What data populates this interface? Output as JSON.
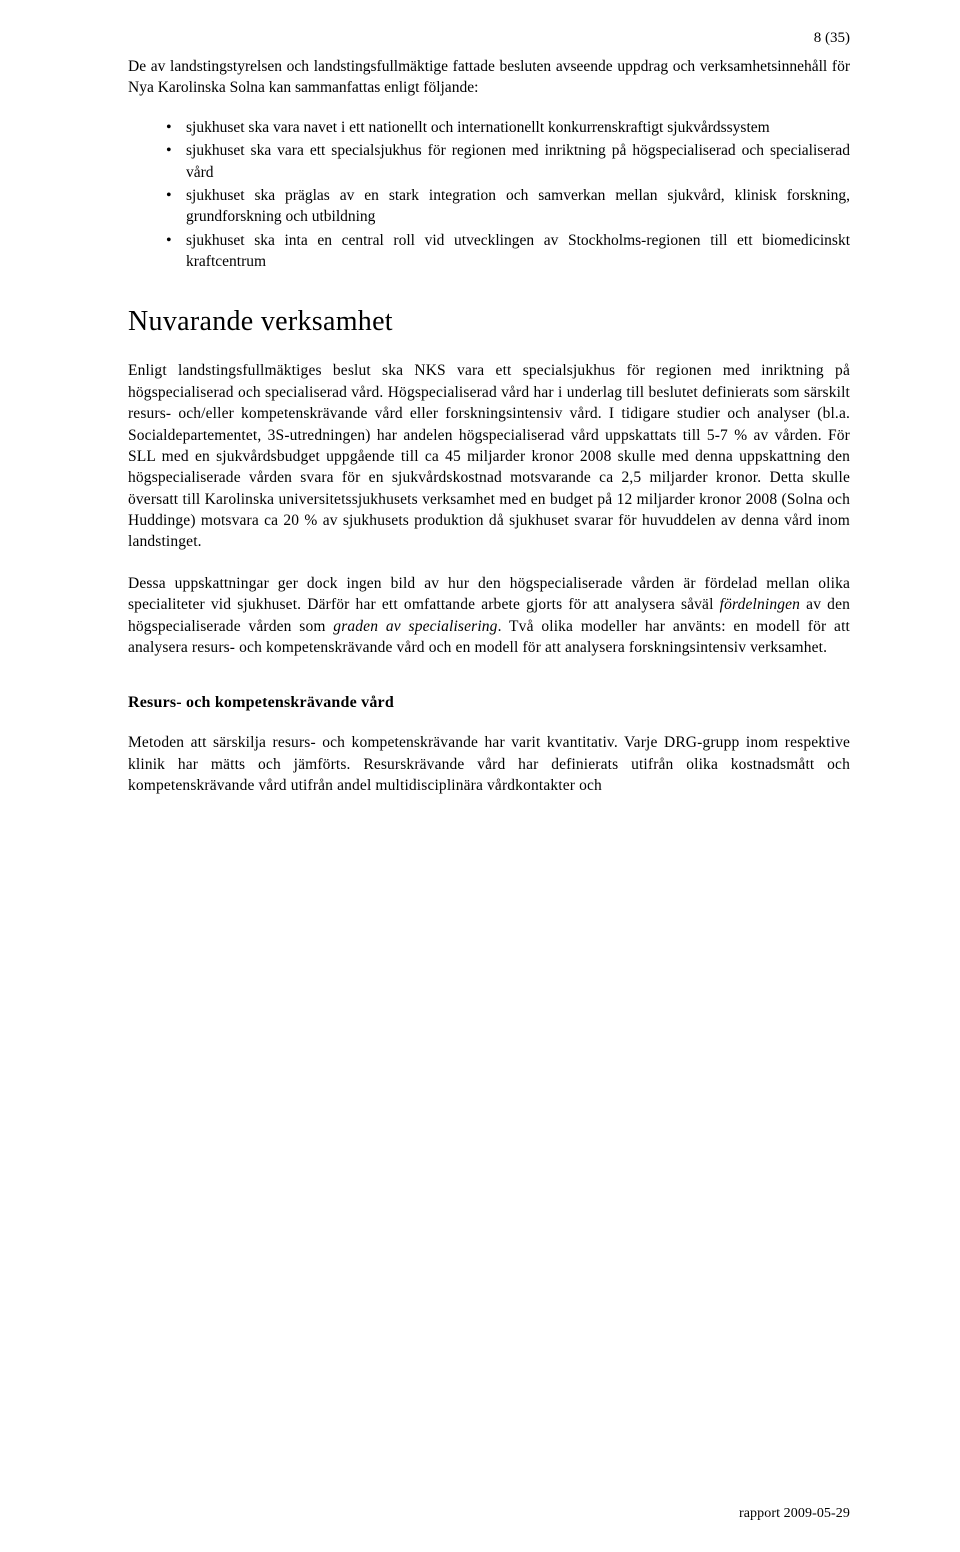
{
  "page_number": "8 (35)",
  "intro": "De av landstingstyrelsen och landstingsfullmäktige fattade besluten avseende uppdrag och verksamhetsinnehåll för Nya Karolinska Solna kan sammanfattas enligt följande:",
  "bullets": [
    "sjukhuset ska vara navet i ett nationellt och internationellt konkurrenskraftigt sjukvårdssystem",
    "sjukhuset ska vara ett specialsjukhus för regionen med inriktning på högspecialiserad och specialiserad vård",
    "sjukhuset ska präglas av en stark integration och samverkan mellan sjukvård, klinisk forskning, grundforskning och utbildning",
    "sjukhuset ska inta en central roll vid utvecklingen av Stockholms-regionen till ett biomedicinskt kraftcentrum"
  ],
  "section_title": "Nuvarande verksamhet",
  "para1": "Enligt landstingsfullmäktiges beslut ska NKS vara ett specialsjukhus för regionen med inriktning på högspecialiserad och specialiserad vård. Högspecialiserad vård har i underlag till beslutet definierats som särskilt resurs- och/eller kompetenskrävande vård eller forskningsintensiv vård. I tidigare studier och analyser (bl.a. Socialdepartementet, 3S-utredningen) har andelen högspecialiserad vård uppskattats till 5-7 % av vården. För SLL med en sjukvårdsbudget uppgående till ca 45 miljarder kronor 2008 skulle med denna uppskattning den högspecialiserade vården svara för en sjukvårdskostnad motsvarande ca 2,5 miljarder kronor. Detta skulle översatt till Karolinska universitetssjukhusets verksamhet med en budget på 12 miljarder kronor 2008 (Solna och Huddinge) motsvara ca 20 % av sjukhusets produktion då sjukhuset svarar för huvuddelen av denna vård inom landstinget.",
  "para2_a": "Dessa uppskattningar ger dock ingen bild av hur den högspecialiserade vården är fördelad mellan olika specialiteter vid sjukhuset. Därför har ett omfattande arbete gjorts för att analysera såväl ",
  "para2_i1": "fördelningen",
  "para2_b": " av den högspecialiserade vården som ",
  "para2_i2": "graden av specialisering",
  "para2_c": ". Två olika modeller har använts: en modell för att analysera resurs- och kompetenskrävande vård och en modell för att analysera forskningsintensiv verksamhet.",
  "subhead": "Resurs- och kompetenskrävande vård",
  "para3": "Metoden att särskilja resurs- och kompetenskrävande har varit kvantitativ. Varje DRG-grupp inom respektive klinik har mätts och jämförts. Resurskrävande vård har definierats utifrån olika kostnadsmått och kompetenskrävande vård utifrån andel multidisciplinära vårdkontakter och",
  "footer": "rapport 2009-05-29"
}
